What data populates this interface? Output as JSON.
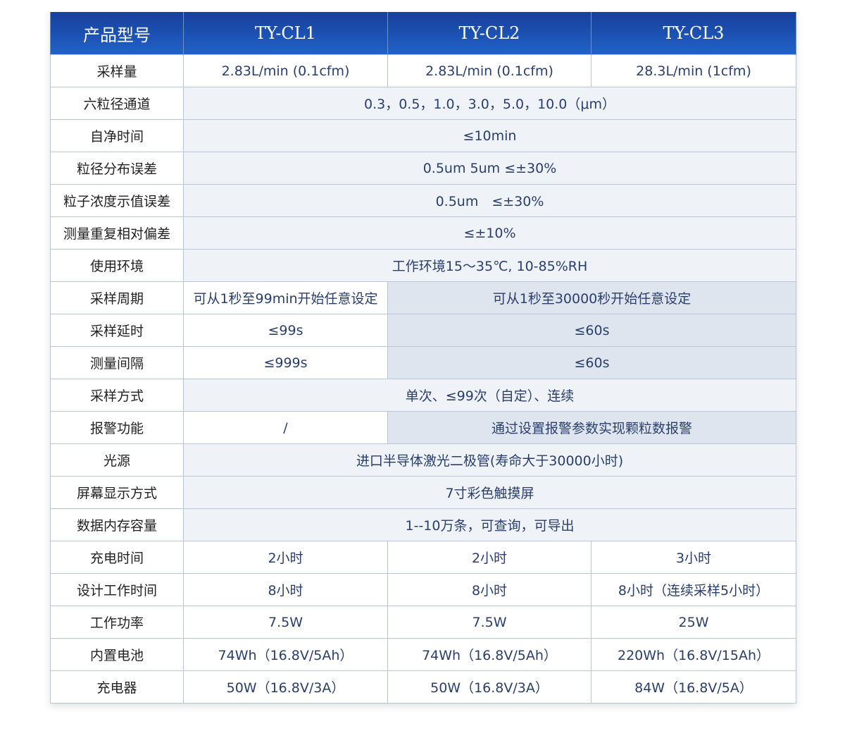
{
  "header": [
    "产品型号",
    "TY-CL1",
    "TY-CL2",
    "TY-CL3"
  ],
  "rows": [
    {
      "label": "采样量",
      "cells": [
        {
          "text": "2.83L/min (0.1cfm)",
          "span": 1
        },
        {
          "text": "2.83L/min (0.1cfm)",
          "span": 1
        },
        {
          "text": "28.3L/min (1cfm)",
          "span": 1
        }
      ]
    },
    {
      "label": "六粒径通道",
      "cells": [
        {
          "text": "0.3，0.5，1.0，3.0，5.0，10.0（μm）",
          "span": 3,
          "shade": "m"
        }
      ]
    },
    {
      "label": "自净时间",
      "cells": [
        {
          "text": "≤10min",
          "span": 3,
          "shade": "m"
        }
      ]
    },
    {
      "label": "粒径分布误差",
      "cells": [
        {
          "text": "0.5um 5um ≤±30%",
          "span": 3,
          "shade": "m"
        }
      ]
    },
    {
      "label": "粒子浓度示值误差",
      "cells": [
        {
          "text": "0.5um　≤±30%",
          "span": 3,
          "shade": "m"
        }
      ]
    },
    {
      "label": "测量重复相对偏差",
      "cells": [
        {
          "text": "≤±10%",
          "span": 3,
          "shade": "m"
        }
      ]
    },
    {
      "label": "使用环境",
      "cells": [
        {
          "text": "工作环境15～35℃, 10-85%RH",
          "span": 3,
          "shade": "m"
        }
      ]
    },
    {
      "label": "采样周期",
      "cells": [
        {
          "text": "可从1秒至99min开始任意设定",
          "span": 1
        },
        {
          "text": "可从1秒至30000秒开始任意设定",
          "span": 2,
          "shade": "g"
        }
      ]
    },
    {
      "label": "采样延时",
      "cells": [
        {
          "text": "≤99s",
          "span": 1
        },
        {
          "text": "≤60s",
          "span": 2,
          "shade": "g"
        }
      ]
    },
    {
      "label": "测量间隔",
      "cells": [
        {
          "text": "≤999s",
          "span": 1
        },
        {
          "text": "≤60s",
          "span": 2,
          "shade": "g"
        }
      ]
    },
    {
      "label": "采样方式",
      "cells": [
        {
          "text": "单次、≤99次（自定）、连续",
          "span": 3,
          "shade": "m"
        }
      ]
    },
    {
      "label": "报警功能",
      "cells": [
        {
          "text": "/",
          "span": 1
        },
        {
          "text": "通过设置报警参数实现颗粒数报警",
          "span": 2,
          "shade": "g"
        }
      ]
    },
    {
      "label": "光源",
      "cells": [
        {
          "text": "进口半导体激光二极管(寿命大于30000小时)",
          "span": 3,
          "shade": "m"
        }
      ]
    },
    {
      "label": "屏幕显示方式",
      "cells": [
        {
          "text": "7寸彩色触摸屏",
          "span": 3,
          "shade": "m"
        }
      ]
    },
    {
      "label": "数据内存容量",
      "cells": [
        {
          "text": "1--10万条，可查询，可导出",
          "span": 3,
          "shade": "m"
        }
      ]
    },
    {
      "label": "充电时间",
      "cells": [
        {
          "text": "2小时",
          "span": 1
        },
        {
          "text": "2小时",
          "span": 1
        },
        {
          "text": "3小时",
          "span": 1
        }
      ]
    },
    {
      "label": "设计工作时间",
      "cells": [
        {
          "text": "8小时",
          "span": 1
        },
        {
          "text": "8小时",
          "span": 1
        },
        {
          "text": "8小时（连续采样5小时）",
          "span": 1
        }
      ]
    },
    {
      "label": "工作功率",
      "cells": [
        {
          "text": "7.5W",
          "span": 1
        },
        {
          "text": "7.5W",
          "span": 1
        },
        {
          "text": "25W",
          "span": 1
        }
      ]
    },
    {
      "label": "内置电池",
      "cells": [
        {
          "text": "74Wh（16.8V/5Ah）",
          "span": 1
        },
        {
          "text": "74Wh（16.8V/5Ah）",
          "span": 1
        },
        {
          "text": "220Wh（16.8V/15Ah）",
          "span": 1
        }
      ]
    },
    {
      "label": "充电器",
      "cells": [
        {
          "text": "50W（16.8V/3A）",
          "span": 1
        },
        {
          "text": "50W（16.8V/3A）",
          "span": 1
        },
        {
          "text": "84W（16.8V/5A）",
          "span": 1
        }
      ]
    }
  ],
  "colors": {
    "header_top": "#173f9b",
    "header_bottom": "#2162c6",
    "value_text": "#2a3e6d",
    "merged_bg": "#eff3f8",
    "shaded_bg": "#dee5ee",
    "border": "#b8c6dc"
  }
}
